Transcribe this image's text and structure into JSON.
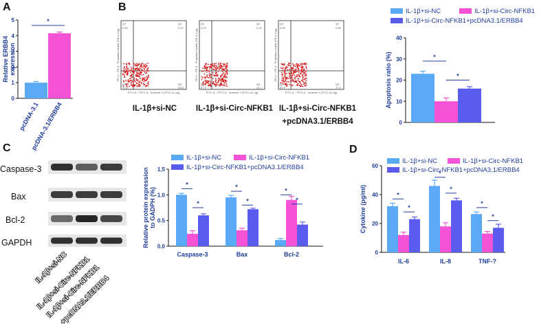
{
  "colors": {
    "nc": "#5aa9f5",
    "si": "#f553d6",
    "combo": "#5a5cf0",
    "text": "#1f3c9c",
    "flow_dots": "#d81e1e"
  },
  "panels": {
    "A": "A",
    "B": "B",
    "C": "C",
    "D": "D"
  },
  "flow": {
    "captions": [
      [
        "IL-1β+si-NC"
      ],
      [
        "IL-1β+si-Circ-NFKB1"
      ],
      [
        "IL-1β+si-Circ-NFKB1",
        "+pcDNA3.1/ERBB4"
      ]
    ],
    "quadrant_values": [
      {
        "q1": "0.69",
        "q2": "0.22",
        "q3": "26.5",
        "q4": "72.6"
      },
      {
        "q1": "0.22",
        "q2": "0.22",
        "q3": "12.1",
        "q4": "87.5"
      },
      {
        "q1": "0.56",
        "q2": "0.56",
        "q3": "17.4",
        "q4": "81.9"
      }
    ],
    "quad_labels": [
      "Q1",
      "Q2",
      "Q3",
      "Q4"
    ],
    "y_axis_label": "PE-A :: PE-A · Propidium Iodide (PE-A Log)",
    "x_axis_label": "FITC-A :: FITC-A · Annexin V (FITC-A Log)"
  },
  "western": {
    "proteins": [
      "Caspase-3",
      "Bax",
      "Bcl-2",
      "GAPDH"
    ],
    "conditions": [
      "IL-1β+si-NC",
      "IL-1β+si-Circ-NFKB1",
      "IL-1β+si-Circ-NFKB1",
      "+pcDNA3.1/ERBB4"
    ]
  },
  "chart_data": [
    {
      "id": "A",
      "type": "bar",
      "categories": [
        "pcDNA-3.1",
        "pcDNA-3.1/ERBB4"
      ],
      "values": [
        1.0,
        4.15
      ],
      "errors": [
        0.08,
        0.08
      ],
      "colors": [
        "#5aa9f5",
        "#f553d6"
      ],
      "ylabel": "Relative ERBB4 expression",
      "ylim": [
        0,
        5
      ],
      "yticks": [
        "0",
        "1",
        "2",
        "3",
        "4",
        "5"
      ],
      "significance": [
        "*"
      ]
    },
    {
      "id": "B",
      "type": "bar",
      "legend": [
        "IL-1β+si-NC",
        "IL-1β+si-Circ-NFKB1",
        "IL-1β+si-Circ-NFKB1+pcDNA3.1/ERBB4"
      ],
      "values": [
        23,
        10,
        16
      ],
      "errors": [
        1.2,
        1.6,
        0.9
      ],
      "ylabel": "Apoptosis ratio (%)",
      "ylim": [
        0,
        40
      ],
      "yticks": [
        "0",
        "10",
        "20",
        "30",
        "40"
      ],
      "significance": [
        "*",
        "*"
      ]
    },
    {
      "id": "C",
      "type": "bar",
      "categories": [
        "Caspase-3",
        "Bax",
        "Bcl-2"
      ],
      "series": [
        {
          "name": "IL-1β+si-NC",
          "values": [
            1.0,
            0.95,
            0.12
          ],
          "errors": [
            0.03,
            0.04,
            0.03
          ]
        },
        {
          "name": "IL-1β+si-Circ-NFKB1",
          "values": [
            0.24,
            0.31,
            0.9
          ],
          "errors": [
            0.06,
            0.04,
            0.07
          ]
        },
        {
          "name": "IL-1β+si-Circ-NFKB1+pcDNA3.1/ERBB4",
          "values": [
            0.6,
            0.72,
            0.42
          ],
          "errors": [
            0.03,
            0.02,
            0.05
          ]
        }
      ],
      "ylabel": "Relative protein expression to GADPH (%)",
      "ylim": [
        0,
        1.5
      ],
      "yticks": [
        "0.0",
        "0.5",
        "1.0",
        "1.5"
      ],
      "significance": [
        "*",
        "*",
        "*",
        "*",
        "*",
        "*"
      ]
    },
    {
      "id": "D",
      "type": "bar",
      "categories": [
        "IL-6",
        "IL-8",
        "TNF-?"
      ],
      "series": [
        {
          "name": "IL-1β+si-NC",
          "values": [
            32,
            46,
            26.5
          ],
          "errors": [
            2,
            4,
            1.5
          ]
        },
        {
          "name": "IL-1β+si-Circ-NFKB1",
          "values": [
            12,
            18,
            13
          ],
          "errors": [
            2,
            2.5,
            1.5
          ]
        },
        {
          "name": "IL-1β+si-Circ-NFKB1+pcDNA3.1/ERBB4",
          "values": [
            23,
            36,
            17
          ],
          "errors": [
            1.5,
            1.5,
            2.5
          ]
        }
      ],
      "ylabel": "Cytokine (pg/ml)",
      "ylim": [
        0,
        60
      ],
      "yticks": [
        "0",
        "20",
        "40",
        "60"
      ],
      "significance": [
        "*",
        "*",
        "*",
        "*",
        "*",
        "*"
      ]
    }
  ]
}
